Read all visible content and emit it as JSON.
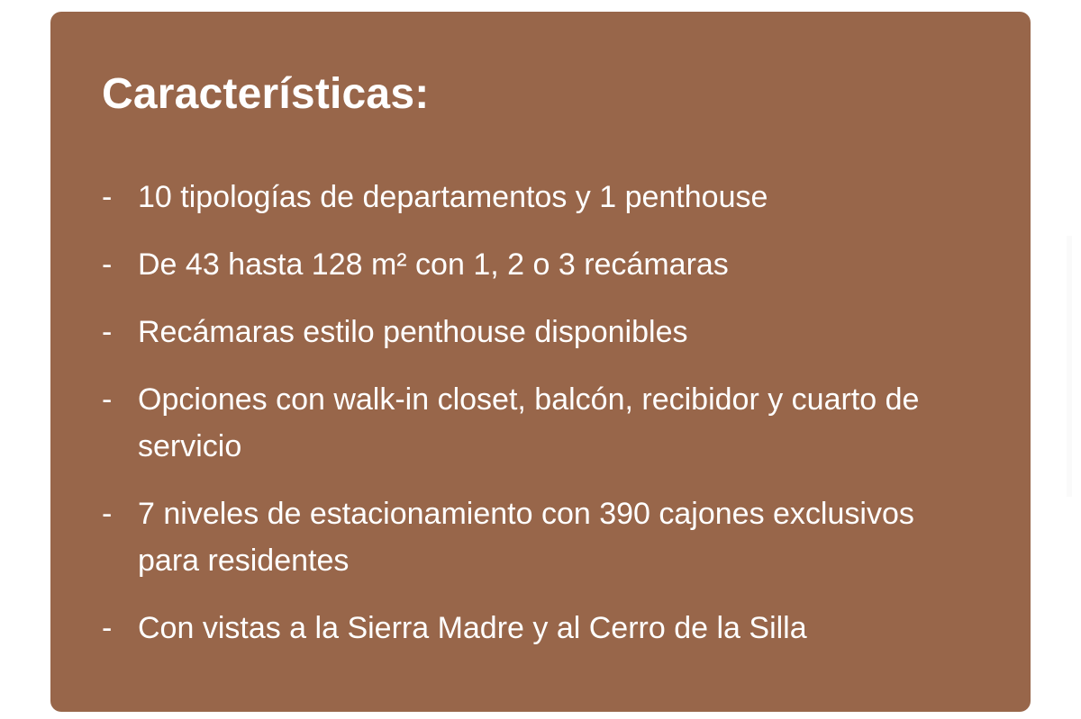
{
  "title": "Características:",
  "bullet": "-",
  "items": [
    "10 tipologías de departamentos y 1 penthouse",
    "De 43 hasta 128 m² con 1, 2 o 3 recámaras",
    "Recámaras estilo penthouse disponibles",
    "Opciones con walk-in closet, balcón, recibidor y cuarto de servicio",
    "7 niveles de estacionamiento con 390 cajones exclusivos para residentes",
    "Con vistas a la Sierra Madre y al Cerro de la Silla"
  ],
  "colors": {
    "card": "#98664a",
    "text": "#ffffff"
  }
}
